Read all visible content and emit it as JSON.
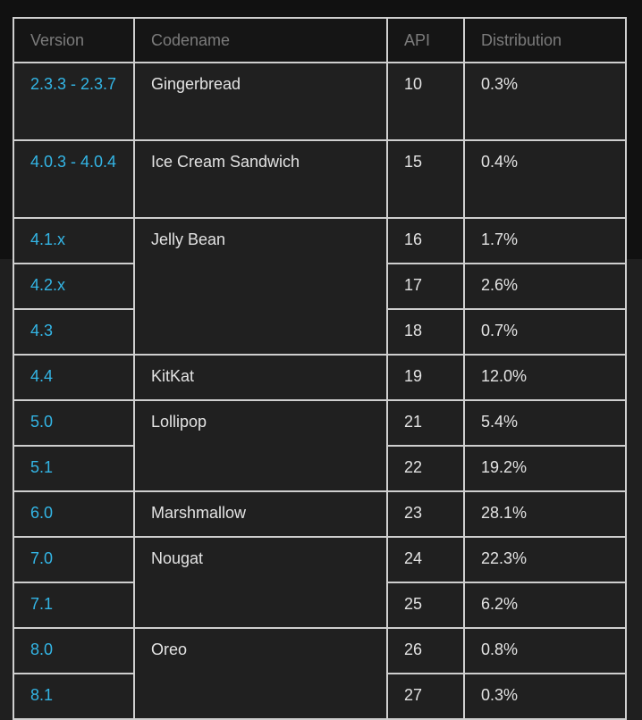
{
  "table": {
    "headers": {
      "version": "Version",
      "codename": "Codename",
      "api": "API",
      "distribution": "Distribution"
    },
    "rows": [
      {
        "version": "2.3.3 - 2.3.7",
        "codename": "Gingerbread",
        "api": "10",
        "distribution": "0.3%"
      },
      {
        "version": "4.0.3 - 4.0.4",
        "codename": "Ice Cream Sandwich",
        "api": "15",
        "distribution": "0.4%"
      },
      {
        "version": "4.1.x",
        "codename": "Jelly Bean",
        "api": "16",
        "distribution": "1.7%"
      },
      {
        "version": "4.2.x",
        "api": "17",
        "distribution": "2.6%"
      },
      {
        "version": "4.3",
        "api": "18",
        "distribution": "0.7%"
      },
      {
        "version": "4.4",
        "codename": "KitKat",
        "api": "19",
        "distribution": "12.0%"
      },
      {
        "version": "5.0",
        "codename": "Lollipop",
        "api": "21",
        "distribution": "5.4%"
      },
      {
        "version": "5.1",
        "api": "22",
        "distribution": "19.2%"
      },
      {
        "version": "6.0",
        "codename": "Marshmallow",
        "api": "23",
        "distribution": "28.1%"
      },
      {
        "version": "7.0",
        "codename": "Nougat",
        "api": "24",
        "distribution": "22.3%"
      },
      {
        "version": "7.1",
        "api": "25",
        "distribution": "6.2%"
      },
      {
        "version": "8.0",
        "codename": "Oreo",
        "api": "26",
        "distribution": "0.8%"
      },
      {
        "version": "8.1",
        "api": "27",
        "distribution": "0.3%"
      }
    ]
  },
  "colors": {
    "version_link": "#33b5e5",
    "border": "#cfcfcf",
    "header_text": "#7c7c7c",
    "cell_text": "#e3e3e3",
    "cell_bg": "#202020",
    "header_bg": "#151515"
  }
}
